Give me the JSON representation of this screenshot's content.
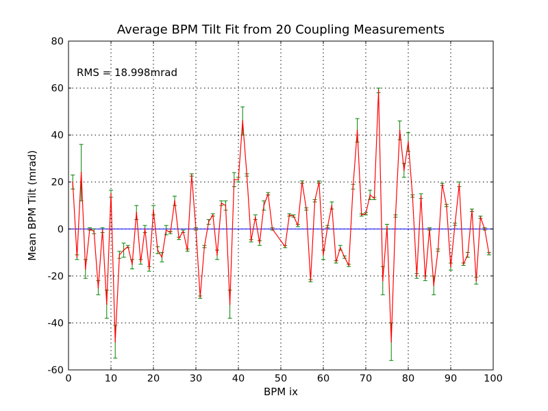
{
  "chart_data": {
    "type": "line",
    "title": "Average BPM Tilt Fit from 20 Coupling Measurements",
    "xlabel": "BPM ix",
    "ylabel": "Mean BPM Tilt (mrad)",
    "annotation": "RMS = 18.998mrad",
    "xlim": [
      0,
      100
    ],
    "ylim": [
      -60,
      80
    ],
    "xticks": [
      0,
      10,
      20,
      30,
      40,
      50,
      60,
      70,
      80,
      90,
      100
    ],
    "yticks": [
      -60,
      -40,
      -20,
      0,
      20,
      40,
      60,
      80
    ],
    "grid": true,
    "reference_line_y": 0,
    "colors": {
      "line": "#ff0000",
      "errorbar": "#008000",
      "reference": "#0000ff"
    },
    "series": [
      {
        "x": [
          1,
          2,
          3,
          4,
          5,
          6,
          7,
          8,
          9,
          10,
          11,
          12,
          13,
          14,
          15,
          16,
          17,
          18,
          19,
          20,
          21,
          22,
          23,
          24,
          25,
          26,
          27,
          28,
          29,
          30,
          31,
          32,
          33,
          34,
          35,
          36,
          37,
          38,
          39,
          40,
          41,
          42,
          43,
          44,
          45,
          46,
          47,
          48,
          51,
          52,
          53,
          54,
          55,
          56,
          57,
          58,
          59,
          60,
          61,
          62,
          63,
          64,
          65,
          66,
          67,
          68,
          69,
          70,
          71,
          72,
          73,
          74,
          75,
          76,
          77,
          78,
          79,
          80,
          81,
          82,
          83,
          84,
          85,
          86,
          87,
          88,
          89,
          90,
          91,
          92,
          93,
          94,
          95,
          96,
          97,
          98,
          99
        ],
        "y": [
          20,
          -12,
          24,
          -17,
          0,
          -1,
          -25,
          -0.5,
          -32,
          15,
          -48,
          -11,
          -9,
          -7.5,
          -15,
          7,
          -14,
          0,
          -17,
          8,
          -9,
          -12,
          -0.5,
          -1.5,
          12,
          -4,
          -1,
          -9,
          23,
          0,
          -29,
          -7.5,
          3,
          6,
          -11,
          11,
          10,
          -32,
          21,
          21,
          46,
          23,
          -5,
          5,
          -6,
          10,
          15,
          0,
          -7.5,
          6,
          5.5,
          1.5,
          20,
          8.5,
          -22,
          12,
          20,
          -11,
          1,
          10,
          -14,
          -8,
          -12,
          -15.5,
          18,
          42,
          6,
          6.5,
          14.5,
          13,
          59,
          -22,
          1,
          -48,
          5.5,
          42,
          25,
          37,
          14,
          -20,
          14,
          -21,
          0,
          -24,
          -9,
          19,
          10,
          -16,
          2,
          19,
          -15,
          -11,
          8,
          -22,
          5,
          0,
          -10.5
        ],
        "err": [
          3,
          1,
          12,
          4,
          0.5,
          1,
          3,
          1,
          6,
          1.5,
          7,
          1.5,
          3,
          0.5,
          2,
          3,
          1,
          1.5,
          1,
          2,
          1.5,
          2,
          2,
          0.5,
          2,
          0.5,
          0.5,
          0.5,
          0.5,
          0.5,
          0.5,
          0.5,
          1,
          0.5,
          2,
          1,
          2,
          6,
          3,
          1,
          6,
          0.5,
          0.5,
          1,
          1,
          2,
          0.5,
          0.5,
          0.5,
          0.5,
          0.5,
          0.5,
          0.5,
          0.5,
          0.5,
          0.5,
          0.5,
          2,
          0.5,
          1.5,
          0.5,
          1,
          0.5,
          0.5,
          1,
          5,
          0.5,
          0.5,
          2,
          0.5,
          1,
          6,
          1,
          8,
          0.5,
          4,
          3,
          4,
          0.5,
          1,
          1,
          1,
          0.5,
          4,
          0.5,
          0.5,
          0.5,
          1.5,
          0.5,
          1,
          0.5,
          1,
          0.5,
          1.5,
          0.5,
          0.5,
          0.5
        ]
      }
    ]
  }
}
